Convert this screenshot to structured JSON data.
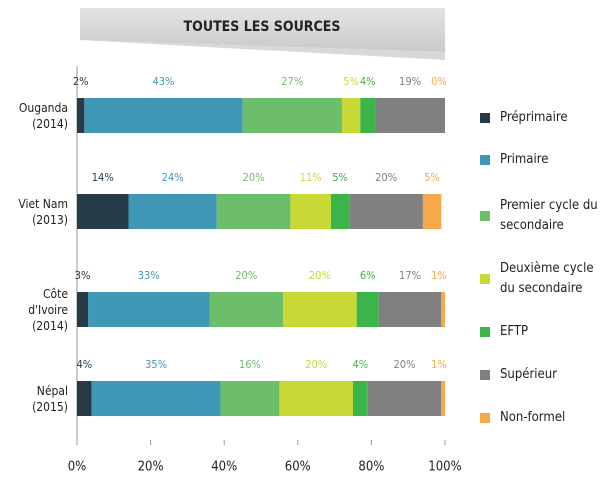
{
  "chart_data": {
    "type": "bar",
    "orientation": "horizontal",
    "stacked": true,
    "title": "TOUTES LES SOURCES",
    "categories": [
      "Ouganda (2014)",
      "Viet Nam (2013)",
      "Côte d'Ivoire (2014)",
      "Népal (2015)"
    ],
    "series": [
      {
        "name": "Préprimaire",
        "color": "#263a47",
        "values": [
          2,
          14,
          3,
          4
        ],
        "value_labels": [
          "2%",
          "14%",
          "3%",
          "4%"
        ]
      },
      {
        "name": "Primaire",
        "color": "#3f98b5",
        "values": [
          43,
          24,
          33,
          35
        ],
        "value_labels": [
          "43%",
          "24%",
          "33%",
          "35%"
        ]
      },
      {
        "name": "Premier cycle du secondaire",
        "color": "#6dbe6a",
        "values": [
          27,
          20,
          20,
          16
        ],
        "value_labels": [
          "27%",
          "20%",
          "20%",
          "16%"
        ]
      },
      {
        "name": "Deuxième cycle du secondaire",
        "color": "#c8d936",
        "values": [
          5,
          11,
          20,
          20
        ],
        "value_labels": [
          "5%",
          "11%",
          "20%",
          "20%"
        ]
      },
      {
        "name": "EFTP",
        "color": "#3bb44a",
        "values": [
          4,
          5,
          6,
          4
        ],
        "value_labels": [
          "4%",
          "5%",
          "6%",
          "4%"
        ]
      },
      {
        "name": "Supérieur",
        "color": "#808080",
        "values": [
          19,
          20,
          17,
          20
        ],
        "value_labels": [
          "19%",
          "20%",
          "17%",
          "20%"
        ]
      },
      {
        "name": "Non-formel",
        "color": "#f5a94a",
        "values": [
          0,
          5,
          1,
          1
        ],
        "value_labels": [
          "0%",
          "5%",
          "1%",
          "1%"
        ]
      }
    ],
    "xlim": [
      0,
      100
    ],
    "xticks": [
      {
        "value": 0,
        "label": "0%"
      },
      {
        "value": 20,
        "label": "20%"
      },
      {
        "value": 40,
        "label": "40%"
      },
      {
        "value": 60,
        "label": "60%"
      },
      {
        "value": 80,
        "label": "80%"
      },
      {
        "value": 100,
        "label": "100%"
      }
    ],
    "grid": false,
    "legend": "right"
  }
}
